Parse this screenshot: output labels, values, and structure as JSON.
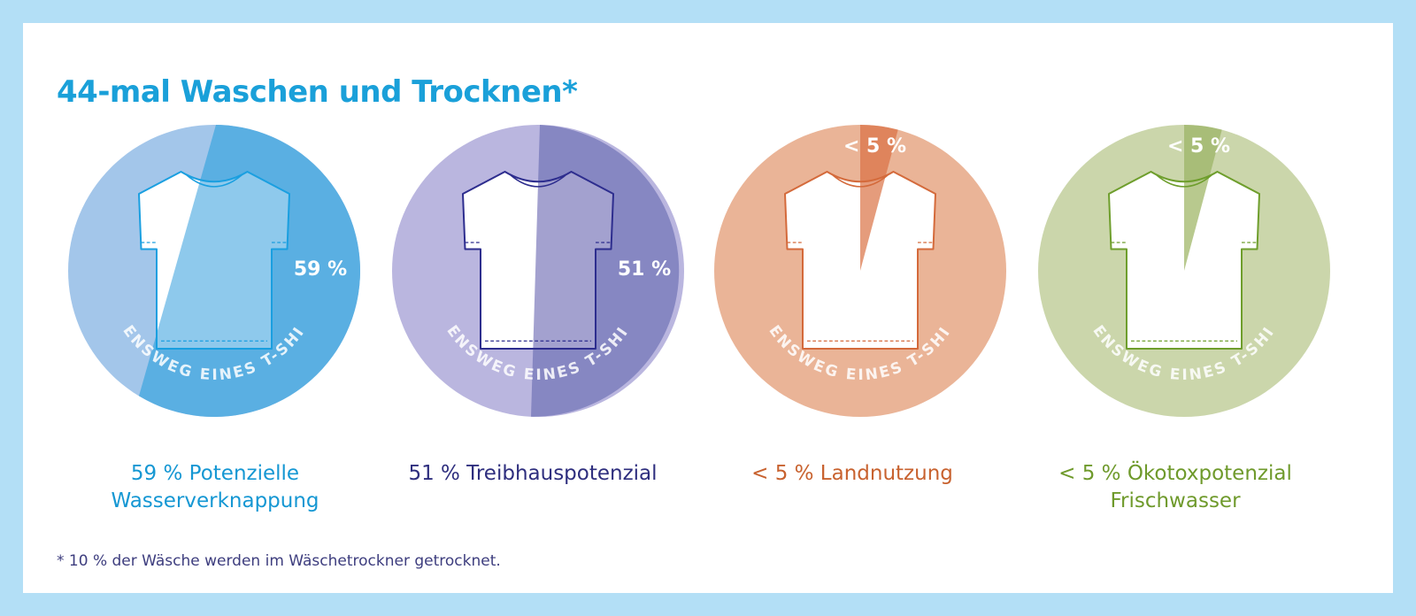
{
  "title": "44-mal Waschen und Trocknen*",
  "footnote": "* 10 % der Wäsche werden im Wäschetrockner getrocknet.",
  "ring_text": "LEBENSWEG EINES T-SHIRTS",
  "chart_data": {
    "type": "pie",
    "items": [
      {
        "value_label": "59 %",
        "value_percent": 59,
        "caption_line1": "59 % Potenzielle",
        "caption_line2": "Wasserverknappung",
        "colors": {
          "base": "#a3c6ea",
          "share": "#5aafe2",
          "tint": "#8ec9ec",
          "shirt": "#1a9fe0",
          "caption": "#1597d3"
        }
      },
      {
        "value_label": "51 %",
        "value_percent": 51,
        "caption_line1": "51 % Treibhauspotenzial",
        "caption_line2": "",
        "colors": {
          "base": "#bab6df",
          "share": "#8687c2",
          "tint": "#a3a1cf",
          "shirt": "#2d2d8e",
          "caption": "#2e2e7e"
        }
      },
      {
        "value_label": "< 5 %",
        "value_percent": 5,
        "caption_line1": "< 5 % Landnutzung",
        "caption_line2": "",
        "colors": {
          "base": "#eab497",
          "share": "#df845c",
          "tint": "#e59c7c",
          "shirt": "#d46a3b",
          "caption": "#c8622f"
        }
      },
      {
        "value_label": "< 5 %",
        "value_percent": 5,
        "caption_line1": "< 5 % Ökotoxpotenzial",
        "caption_line2": "Frischwasser",
        "colors": {
          "base": "#cbd6ab",
          "share": "#a8bd78",
          "tint": "#b8c98e",
          "shirt": "#6e9e2c",
          "caption": "#6f9a2c"
        }
      }
    ]
  }
}
